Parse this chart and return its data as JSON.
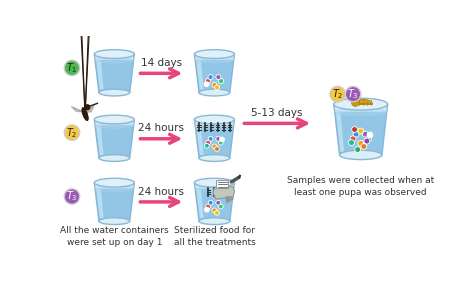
{
  "bg_color": "#ffffff",
  "arrow_color": "#e8457a",
  "label_14days": "14 days",
  "label_24hours_1": "24 hours",
  "label_24hours_2": "24 hours",
  "label_5_13days": "5-13 days",
  "caption_left": "All the water containers\nwere set up on day 1",
  "caption_mid": "Sterilized food for\nall the treatments",
  "caption_right": "Samples were collected when at\nleast one pupa was observed",
  "T1_color": "#4db84e",
  "T2_color": "#f5c842",
  "T3_color": "#9b59b6",
  "cup_outer_color": "#c5dff0",
  "cup_water_color": "#7ab8e0",
  "cup_water_light": "#a8d4f0",
  "cup_bg_color": "#dbeef8",
  "dot_colors_row1": [
    "#e74c3c",
    "#f39c12",
    "#2ecc71",
    "#3498db",
    "#9b59b6",
    "#ffffff",
    "#f1c40f"
  ],
  "dot_colors_row2": [
    "#e74c3c",
    "#f39c12",
    "#2ecc71",
    "#3498db",
    "#9b59b6",
    "#1abc9c",
    "#e67e22",
    "#ffffff"
  ],
  "dot_colors_final": [
    "#e74c3c",
    "#f39c12",
    "#2ecc71",
    "#3498db",
    "#9b59b6",
    "#1abc9c",
    "#e67e22",
    "#ffffff",
    "#f1c40f",
    "#c0392b",
    "#8e44ad",
    "#27ae60"
  ],
  "font_size_label": 7.5,
  "font_size_caption": 6.5,
  "font_size_T": 7
}
